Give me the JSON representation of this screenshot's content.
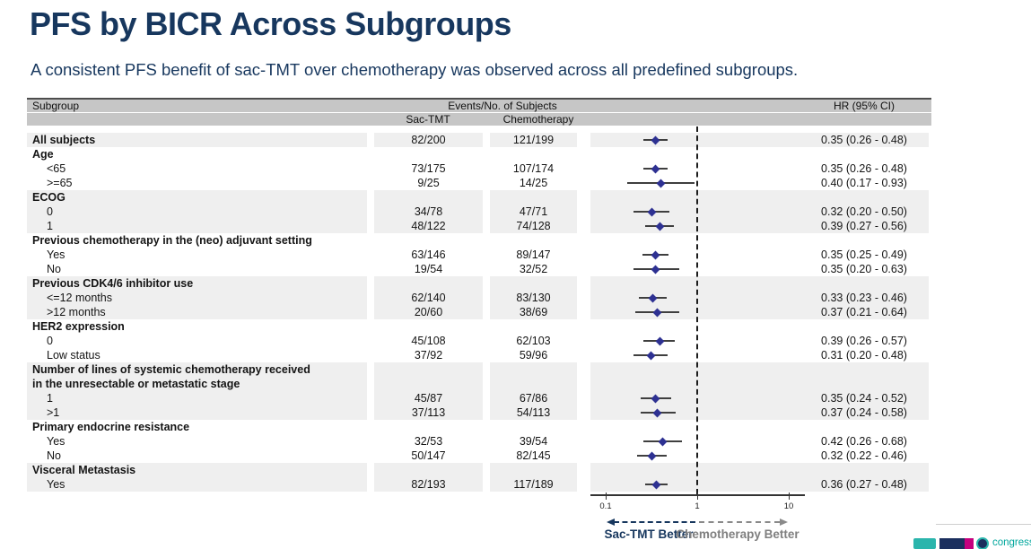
{
  "slide": {
    "title": "PFS by BICR Across Subgroups",
    "subtitle": "A consistent PFS benefit of sac-TMT over chemotherapy was observed across all predefined subgroups."
  },
  "table_header": {
    "subgroup": "Subgroup",
    "events_group": "Events/No. of Subjects",
    "col_sac": "Sac-TMT",
    "col_chemo": "Chemotherapy",
    "col_hr": "HR (95% CI)"
  },
  "chart_data": {
    "type": "forest",
    "x_axis": {
      "scale": "log",
      "ticks": [
        0.1,
        1,
        10
      ],
      "tick_labels": [
        "0.1",
        "1",
        "10"
      ],
      "reference_line": 1
    },
    "footer": {
      "left_label": "Sac-TMT Better",
      "right_label": "Chemotherapy Better"
    },
    "colors": {
      "marker": "#2e3192",
      "ci_line": "#3f3f3f",
      "navy": "#17375e",
      "gray": "#7f7f7f",
      "header_bg": "#c6c6c6",
      "stripe_bg": "#efefef"
    },
    "rows": [
      {
        "kind": "data",
        "label": "All subjects",
        "bold": true,
        "indent": false,
        "stripe": true,
        "sac": "82/200",
        "chemo": "121/199",
        "hr": 0.35,
        "lo": 0.26,
        "hi": 0.48,
        "hr_text": "0.35 (0.26 - 0.48)"
      },
      {
        "kind": "group",
        "label": "Age",
        "stripe": false
      },
      {
        "kind": "data",
        "label": "<65",
        "indent": true,
        "stripe": false,
        "sac": "73/175",
        "chemo": "107/174",
        "hr": 0.35,
        "lo": 0.26,
        "hi": 0.48,
        "hr_text": "0.35 (0.26 - 0.48)"
      },
      {
        "kind": "data",
        "label": ">=65",
        "indent": true,
        "stripe": false,
        "sac": "9/25",
        "chemo": "14/25",
        "hr": 0.4,
        "lo": 0.17,
        "hi": 0.93,
        "hr_text": "0.40 (0.17 - 0.93)"
      },
      {
        "kind": "group",
        "label": "ECOG",
        "stripe": true
      },
      {
        "kind": "data",
        "label": "0",
        "indent": true,
        "stripe": true,
        "sac": "34/78",
        "chemo": "47/71",
        "hr": 0.32,
        "lo": 0.2,
        "hi": 0.5,
        "hr_text": "0.32 (0.20 - 0.50)"
      },
      {
        "kind": "data",
        "label": "1",
        "indent": true,
        "stripe": true,
        "sac": "48/122",
        "chemo": "74/128",
        "hr": 0.39,
        "lo": 0.27,
        "hi": 0.56,
        "hr_text": "0.39 (0.27 - 0.56)"
      },
      {
        "kind": "group",
        "label": "Previous chemotherapy in the (neo) adjuvant setting",
        "stripe": false
      },
      {
        "kind": "data",
        "label": "Yes",
        "indent": true,
        "stripe": false,
        "sac": "63/146",
        "chemo": "89/147",
        "hr": 0.35,
        "lo": 0.25,
        "hi": 0.49,
        "hr_text": "0.35 (0.25 - 0.49)"
      },
      {
        "kind": "data",
        "label": "No",
        "indent": true,
        "stripe": false,
        "sac": "19/54",
        "chemo": "32/52",
        "hr": 0.35,
        "lo": 0.2,
        "hi": 0.63,
        "hr_text": "0.35 (0.20 - 0.63)"
      },
      {
        "kind": "group",
        "label": "Previous CDK4/6 inhibitor use",
        "stripe": true
      },
      {
        "kind": "data",
        "label": "<=12 months",
        "indent": true,
        "stripe": true,
        "sac": "62/140",
        "chemo": "83/130",
        "hr": 0.33,
        "lo": 0.23,
        "hi": 0.46,
        "hr_text": "0.33 (0.23 - 0.46)"
      },
      {
        "kind": "data",
        "label": ">12 months",
        "indent": true,
        "stripe": true,
        "sac": "20/60",
        "chemo": "38/69",
        "hr": 0.37,
        "lo": 0.21,
        "hi": 0.64,
        "hr_text": "0.37 (0.21 - 0.64)"
      },
      {
        "kind": "group",
        "label": "HER2 expression",
        "stripe": false
      },
      {
        "kind": "data",
        "label": "0",
        "indent": true,
        "stripe": false,
        "sac": "45/108",
        "chemo": "62/103",
        "hr": 0.39,
        "lo": 0.26,
        "hi": 0.57,
        "hr_text": "0.39 (0.26 - 0.57)"
      },
      {
        "kind": "data",
        "label": "Low status",
        "indent": true,
        "stripe": false,
        "sac": "37/92",
        "chemo": "59/96",
        "hr": 0.31,
        "lo": 0.2,
        "hi": 0.48,
        "hr_text": "0.31 (0.20 - 0.48)"
      },
      {
        "kind": "group",
        "label": "Number of lines of systemic chemotherapy received",
        "stripe": true
      },
      {
        "kind": "group",
        "label": "in the unresectable or metastatic stage",
        "stripe": true
      },
      {
        "kind": "data",
        "label": "1",
        "indent": true,
        "stripe": true,
        "sac": "45/87",
        "chemo": "67/86",
        "hr": 0.35,
        "lo": 0.24,
        "hi": 0.52,
        "hr_text": "0.35 (0.24 - 0.52)"
      },
      {
        "kind": "data",
        "label": ">1",
        "indent": true,
        "stripe": true,
        "sac": "37/113",
        "chemo": "54/113",
        "hr": 0.37,
        "lo": 0.24,
        "hi": 0.58,
        "hr_text": "0.37 (0.24 - 0.58)"
      },
      {
        "kind": "group",
        "label": "Primary endocrine resistance",
        "stripe": false
      },
      {
        "kind": "data",
        "label": "Yes",
        "indent": true,
        "stripe": false,
        "sac": "32/53",
        "chemo": "39/54",
        "hr": 0.42,
        "lo": 0.26,
        "hi": 0.68,
        "hr_text": "0.42 (0.26 - 0.68)"
      },
      {
        "kind": "data",
        "label": "No",
        "indent": true,
        "stripe": false,
        "sac": "50/147",
        "chemo": "82/145",
        "hr": 0.32,
        "lo": 0.22,
        "hi": 0.46,
        "hr_text": "0.32 (0.22 - 0.46)"
      },
      {
        "kind": "group",
        "label": "Visceral Metastasis",
        "stripe": true
      },
      {
        "kind": "data",
        "label": "Yes",
        "indent": true,
        "stripe": true,
        "sac": "82/193",
        "chemo": "117/189",
        "hr": 0.36,
        "lo": 0.27,
        "hi": 0.48,
        "hr_text": "0.36 (0.27 - 0.48)"
      }
    ]
  },
  "logo": {
    "congress_text": "congress"
  }
}
